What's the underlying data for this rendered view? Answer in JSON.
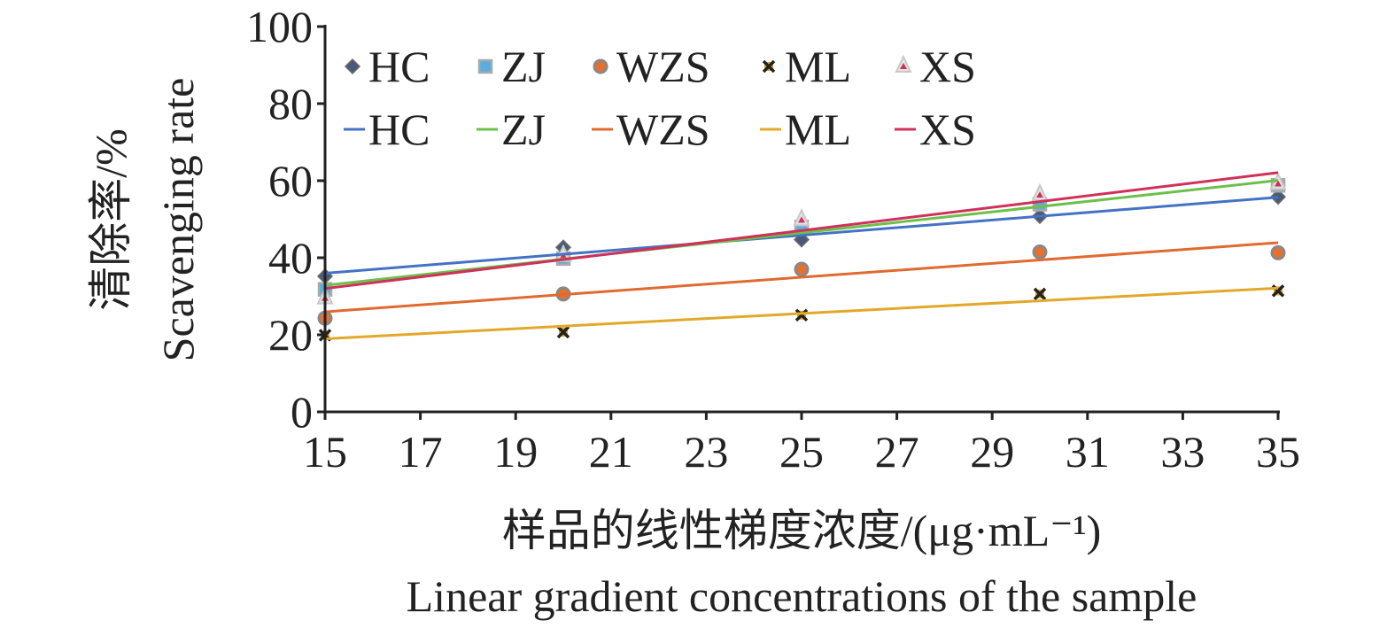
{
  "chart_data": {
    "type": "scatter",
    "title": "",
    "xlabel": "样品的线性梯度浓度/(μg·mL⁻¹)",
    "xlabel_en": "Linear gradient concentrations of the sample",
    "ylabel": "清除率/%",
    "ylabel_en": "Scavenging rate",
    "xlim": [
      15,
      35
    ],
    "ylim": [
      0,
      100
    ],
    "xticks": [
      "15",
      "17",
      "19",
      "21",
      "23",
      "25",
      "27",
      "29",
      "31",
      "33",
      "35"
    ],
    "yticks": [
      "0",
      "20",
      "40",
      "60",
      "80",
      "100"
    ],
    "grid": false,
    "legend_position": "top-left",
    "x": [
      15,
      20,
      25,
      30,
      35
    ],
    "series": [
      {
        "name": "HC",
        "marker": "diamond",
        "values": [
          35.2,
          42.7,
          44.7,
          50.8,
          55.8
        ],
        "marker_color": "#4a5a78",
        "line_color": "#4472c4",
        "trendline": "linear"
      },
      {
        "name": "ZJ",
        "marker": "square",
        "values": [
          31.8,
          39.8,
          48.0,
          53.9,
          58.8
        ],
        "marker_color": "#5aaede",
        "line_color": "#6cc04a",
        "trendline": "linear"
      },
      {
        "name": "WZS",
        "marker": "circle",
        "values": [
          24.3,
          30.6,
          37.0,
          41.5,
          41.3
        ],
        "marker_color": "#e8702e",
        "line_color": "#e06a30",
        "trendline": "linear"
      },
      {
        "name": "ML",
        "marker": "x",
        "values": [
          19.9,
          20.7,
          25.1,
          30.6,
          31.4
        ],
        "marker_color": "#222222",
        "line_color": "#e2a82a",
        "trendline": "linear"
      },
      {
        "name": "XS",
        "marker": "triangle",
        "values": [
          29.5,
          40.5,
          49.8,
          56.3,
          59.2
        ],
        "marker_color": "#d0305a",
        "line_color": "#d0305a",
        "trendline": "linear"
      }
    ]
  }
}
